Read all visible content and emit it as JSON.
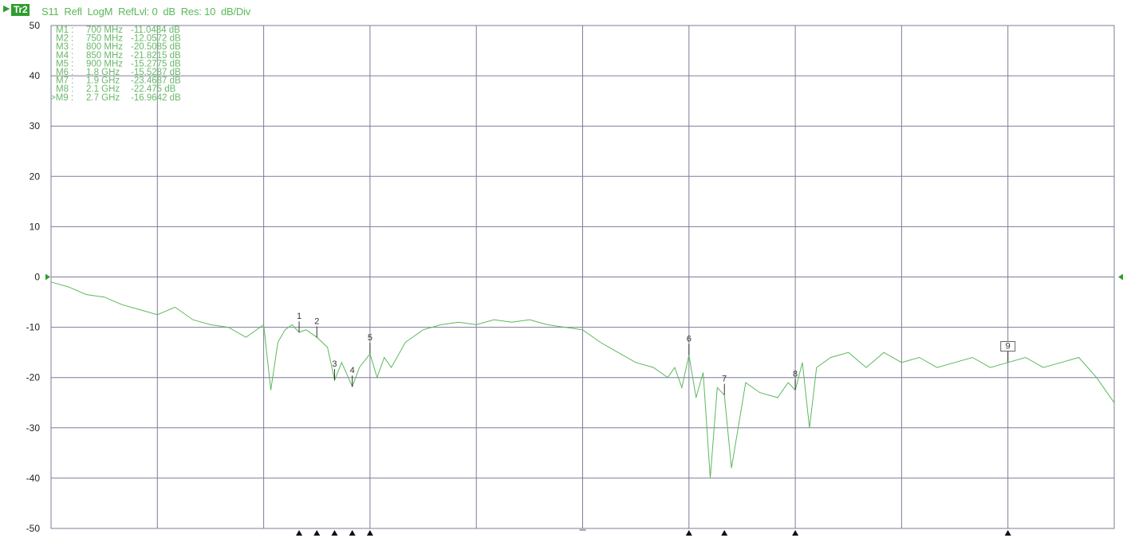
{
  "header": {
    "trace_badge": "Tr2",
    "trace_text": "S11  Refl  LogM  RefLvl: 0  dB  Res: 10  dB/Div"
  },
  "colors": {
    "trace": "#5cb85c",
    "grid": "#7d7d9a",
    "marker_table": "#6ab86a",
    "marker_label": "#333333"
  },
  "markers": [
    {
      "label": "M1 :",
      "freq": "700 MHz",
      "value": "-11.0484  dB",
      "num": "1",
      "x_mhz": 700,
      "y_db": -11.05,
      "active": false
    },
    {
      "label": "M2 :",
      "freq": "750 MHz",
      "value": "-12.0572  dB",
      "num": "2",
      "x_mhz": 750,
      "y_db": -12.06,
      "active": false
    },
    {
      "label": "M3 :",
      "freq": "800 MHz",
      "value": "-20.5085  dB",
      "num": "3",
      "x_mhz": 800,
      "y_db": -20.51,
      "active": false
    },
    {
      "label": "M4 :",
      "freq": "850 MHz",
      "value": "-21.8215  dB",
      "num": "4",
      "x_mhz": 850,
      "y_db": -21.82,
      "active": false
    },
    {
      "label": "M5 :",
      "freq": "900 MHz",
      "value": "-15.2775  dB",
      "num": "5",
      "x_mhz": 900,
      "y_db": -15.28,
      "active": false
    },
    {
      "label": "M6 :",
      "freq": "1.8 GHz",
      "value": "-15.5287  dB",
      "num": "6",
      "x_mhz": 1800,
      "y_db": -15.53,
      "active": false
    },
    {
      "label": "M7 :",
      "freq": "1.9 GHz",
      "value": "-23.4687  dB",
      "num": "7",
      "x_mhz": 1900,
      "y_db": -23.47,
      "active": false
    },
    {
      "label": "M8 :",
      "freq": "2.1 GHz",
      "value": "-22.475  dB",
      "num": "8",
      "x_mhz": 2100,
      "y_db": -22.48,
      "active": false
    },
    {
      "label": ">M9 :",
      "freq": "2.7 GHz",
      "value": "-16.9642  dB",
      "num": "9",
      "x_mhz": 2700,
      "y_db": -16.96,
      "active": true
    }
  ],
  "chart_data": {
    "type": "line",
    "title": "",
    "xlabel": "",
    "ylabel": "",
    "ylim": [
      -50,
      50
    ],
    "xlim_mhz": [
      0,
      3000
    ],
    "y_ticks": [
      "50",
      "40",
      "30",
      "20",
      "10",
      "0",
      "-10",
      "-20",
      "-30",
      "-40",
      "-50"
    ],
    "grid": true,
    "series": [
      {
        "x_mhz": [
          0,
          50,
          100,
          150,
          200,
          250,
          300,
          350,
          400,
          450,
          500,
          550,
          600,
          620,
          640,
          660,
          680,
          700,
          720,
          750,
          780,
          800,
          820,
          850,
          870,
          900,
          920,
          940,
          960,
          1000,
          1050,
          1100,
          1150,
          1200,
          1250,
          1300,
          1350,
          1400,
          1450,
          1500,
          1550,
          1600,
          1650,
          1700,
          1740,
          1760,
          1780,
          1800,
          1820,
          1840,
          1860,
          1880,
          1900,
          1920,
          1960,
          2000,
          2050,
          2080,
          2100,
          2120,
          2140,
          2160,
          2200,
          2250,
          2300,
          2350,
          2400,
          2450,
          2500,
          2550,
          2600,
          2650,
          2700,
          2750,
          2800,
          2850,
          2900,
          2950,
          3000
        ],
        "y_db": [
          -1,
          -2,
          -3.5,
          -4,
          -5.5,
          -6.5,
          -7.5,
          -6,
          -8.5,
          -9.5,
          -10,
          -12,
          -9.5,
          -22.5,
          -13,
          -10.5,
          -9.5,
          -11,
          -10.5,
          -12,
          -14,
          -20.5,
          -17,
          -21.8,
          -18,
          -15.3,
          -20,
          -16,
          -18,
          -13,
          -10.5,
          -9.5,
          -9,
          -9.5,
          -8.5,
          -9,
          -8.5,
          -9.5,
          -10,
          -10.5,
          -13,
          -15,
          -17,
          -18,
          -20,
          -18,
          -22,
          -15.5,
          -24,
          -19,
          -40,
          -22,
          -23.5,
          -38,
          -21,
          -23,
          -24,
          -21,
          -22.5,
          -17,
          -30,
          -18,
          -16,
          -15,
          -18,
          -15,
          -17,
          -16,
          -18,
          -17,
          -16,
          -18,
          -17,
          -16,
          -18,
          -17,
          -16,
          -20,
          -25
        ]
      }
    ]
  }
}
